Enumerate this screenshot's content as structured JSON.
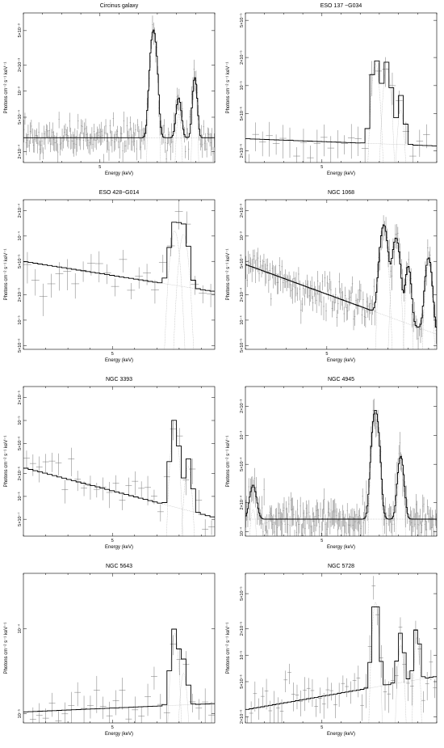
{
  "figure": {
    "ylabel": "Photons cm⁻² s⁻¹ keV⁻¹",
    "xlabel": "Energy (keV)"
  },
  "chart_data": [
    {
      "type": "line",
      "title": "Circinus galaxy",
      "xlabel": "Energy (keV)",
      "ylabel": "Photons cm⁻² s⁻¹ keV⁻¹",
      "x_ticks": [
        "5"
      ],
      "y_ticks": [
        "2×10⁻⁴",
        "5×10⁻⁴",
        "10⁻³",
        "2×10⁻³",
        "5×10⁻³"
      ],
      "xlim": [
        3,
        8
      ],
      "ylim": [
        0.00015,
        0.008
      ],
      "yscale": "log",
      "continuum": [
        [
          3,
          0.00029
        ],
        [
          6.2,
          0.00029
        ]
      ],
      "lines": [
        [
          6.4,
          0.0048,
          0.07
        ],
        [
          7.06,
          0.00055,
          0.06
        ],
        [
          7.48,
          0.00115,
          0.05
        ]
      ],
      "noise_points": 180,
      "scatter": 0.25
    },
    {
      "type": "line",
      "title": "ESO 137 −G034",
      "xlabel": "Energy (keV)",
      "ylabel": "Photons cm⁻² s⁻¹ keV⁻¹",
      "x_ticks": [
        "5"
      ],
      "y_ticks": [
        "2×10⁻⁶",
        "5×10⁻⁶",
        "10⁻⁵",
        "2×10⁻⁵",
        "5×10⁻⁵"
      ],
      "xlim": [
        3,
        8
      ],
      "ylim": [
        1.5e-06,
        6e-05
      ],
      "yscale": "log",
      "continuum": [
        [
          3,
          2.7e-06
        ],
        [
          6.3,
          2.4e-06
        ]
      ],
      "lines": [
        [
          6.4,
          1.72e-05,
          0.09
        ],
        [
          6.7,
          1.55e-05,
          0.09
        ],
        [
          7.06,
          5.5e-06,
          0.08
        ]
      ],
      "noise_points": 28,
      "scatter": 0.35
    },
    {
      "type": "line",
      "title": "ESO 428−G014",
      "xlabel": "Energy (keV)",
      "ylabel": "Photons cm⁻² s⁻¹ keV⁻¹",
      "x_ticks": [
        "5"
      ],
      "y_ticks": [
        "5×10⁻⁶",
        "10⁻⁵",
        "2×10⁻⁵",
        "5×10⁻⁵",
        "10⁻⁴",
        "2×10⁻⁴"
      ],
      "xlim": [
        3,
        7.3
      ],
      "ylim": [
        4.5e-06,
        0.00027
      ],
      "yscale": "log",
      "continuum": [
        [
          3,
          5e-05
        ],
        [
          6.2,
          2.7e-05
        ]
      ],
      "lines": [
        [
          6.4,
          0.000115,
          0.09
        ],
        [
          6.6,
          0.000105,
          0.09
        ]
      ],
      "noise_points": 24,
      "scatter": 0.35
    },
    {
      "type": "line",
      "title": "NGC 1068",
      "xlabel": "Energy (keV)",
      "ylabel": "Photons cm⁻² s⁻¹ keV⁻¹",
      "x_ticks": [
        "5"
      ],
      "y_ticks": [
        "5×10⁻⁵",
        "10⁻⁴",
        "2×10⁻⁴",
        "5×10⁻⁴",
        "10⁻³",
        "2×10⁻³"
      ],
      "xlim": [
        3,
        7.7
      ],
      "ylim": [
        4.5e-05,
        0.0027
      ],
      "yscale": "log",
      "continuum": [
        [
          3,
          0.00046
        ],
        [
          6.2,
          0.000125
        ]
      ],
      "lines": [
        [
          6.4,
          0.00125,
          0.08
        ],
        [
          6.7,
          0.00085,
          0.08
        ],
        [
          7.0,
          0.00035,
          0.06
        ],
        [
          7.5,
          0.00048,
          0.07
        ]
      ],
      "noise_points": 160,
      "scatter": 0.28
    },
    {
      "type": "line",
      "title": "NGC 3393",
      "xlabel": "Energy (keV)",
      "ylabel": "Photons cm⁻² s⁻¹ keV⁻¹",
      "x_ticks": [
        "5"
      ],
      "y_ticks": [
        "5×10⁻⁷",
        "10⁻⁶",
        "2×10⁻⁶",
        "5×10⁻⁶",
        "10⁻⁵",
        "2×10⁻⁵"
      ],
      "xlim": [
        3,
        7.3
      ],
      "ylim": [
        3e-07,
        2.8e-05
      ],
      "yscale": "log",
      "continuum": [
        [
          3,
          2.4e-06
        ],
        [
          6.3,
          7.5e-07
        ]
      ],
      "lines": [
        [
          6.4,
          9.5e-06,
          0.07
        ],
        [
          6.7,
          2.5e-06,
          0.07
        ]
      ],
      "noise_points": 30,
      "scatter": 0.35
    },
    {
      "type": "line",
      "title": "NGC 4945",
      "xlabel": "Energy (keV)",
      "ylabel": "Photons cm⁻² s⁻¹ keV⁻¹",
      "x_ticks": [
        "5"
      ],
      "y_ticks": [
        "10⁻⁴",
        "2×10⁻⁴",
        "5×10⁻⁴",
        "10⁻³",
        "2×10⁻³"
      ],
      "xlim": [
        3,
        8
      ],
      "ylim": [
        9e-05,
        0.0032
      ],
      "yscale": "log",
      "continuum": [
        [
          3,
          0.000135
        ],
        [
          6.2,
          0.000135
        ]
      ],
      "lines": [
        [
          3.2,
          0.00017,
          0.08
        ],
        [
          6.4,
          0.0017,
          0.08
        ],
        [
          7.06,
          0.00047,
          0.07
        ]
      ],
      "noise_points": 200,
      "scatter": 0.28
    },
    {
      "type": "line",
      "title": "NGC 5643",
      "xlabel": "Energy (keV)",
      "ylabel": "Photons cm⁻² s⁻¹ keV⁻¹",
      "x_ticks": [
        "5"
      ],
      "y_ticks": [
        "10⁻⁵",
        "10⁻⁴"
      ],
      "xlim": [
        3,
        7.3
      ],
      "ylim": [
        7.8e-06,
        0.00045
      ],
      "yscale": "log",
      "continuum": [
        [
          3,
          1.05e-05
        ],
        [
          6.3,
          1.25e-05
        ]
      ],
      "lines": [
        [
          6.4,
          8.8e-05,
          0.07
        ],
        [
          6.6,
          3e-05,
          0.07
        ]
      ],
      "noise_points": 30,
      "scatter": 0.4
    },
    {
      "type": "line",
      "title": "NGC 5728",
      "xlabel": "Energy (keV)",
      "ylabel": "Photons cm⁻² s⁻¹ keV⁻¹",
      "x_ticks": [
        "5"
      ],
      "y_ticks": [
        "2×10⁻⁶",
        "5×10⁻⁶",
        "10⁻⁵",
        "2×10⁻⁵",
        "5×10⁻⁵"
      ],
      "xlim": [
        3,
        8
      ],
      "ylim": [
        1.7e-06,
        8.5e-05
      ],
      "yscale": "log",
      "continuum": [
        [
          3,
          2.4e-06
        ],
        [
          6.2,
          4.2e-06
        ]
      ],
      "lines": [
        [
          6.4,
          4e-05,
          0.07
        ],
        [
          7.06,
          1.3e-05,
          0.07
        ],
        [
          7.48,
          1.6e-05,
          0.06
        ]
      ],
      "noise_points": 50,
      "scatter": 0.35
    }
  ]
}
